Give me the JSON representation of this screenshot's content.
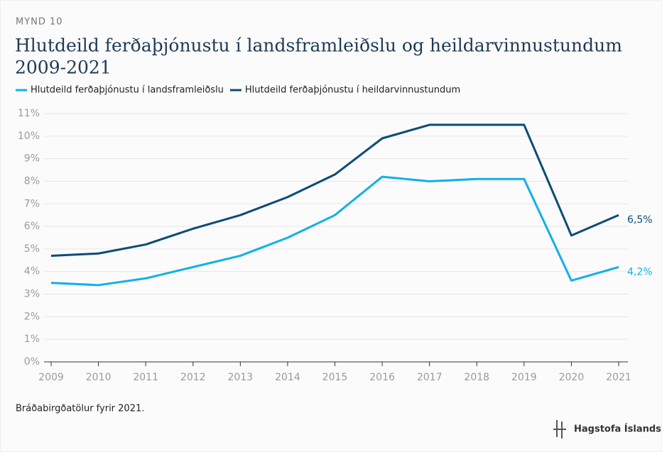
{
  "kicker": "MYND 10",
  "chart_data": {
    "type": "line",
    "title": "Hlutdeild ferðaþjónustu í landsframleiðslu og heildarvinnustundum",
    "subtitle": "2009-2021",
    "x": [
      2009,
      2010,
      2011,
      2012,
      2013,
      2014,
      2015,
      2016,
      2017,
      2018,
      2019,
      2020,
      2021
    ],
    "xlim": [
      2009,
      2021
    ],
    "xticks": [
      2009,
      2010,
      2011,
      2012,
      2013,
      2014,
      2015,
      2016,
      2017,
      2018,
      2019,
      2020,
      2021
    ],
    "ylim": [
      0,
      11
    ],
    "yticks": [
      {
        "value": 0,
        "label": "0%"
      },
      {
        "value": 1,
        "label": "1%"
      },
      {
        "value": 2,
        "label": "2%"
      },
      {
        "value": 3,
        "label": "3%"
      },
      {
        "value": 4,
        "label": "4%"
      },
      {
        "value": 5,
        "label": "5%"
      },
      {
        "value": 6,
        "label": "6%"
      },
      {
        "value": 7,
        "label": "7%"
      },
      {
        "value": 8,
        "label": "8%"
      },
      {
        "value": 9,
        "label": "9%"
      },
      {
        "value": 10,
        "label": "10%"
      },
      {
        "value": 11,
        "label": "11%"
      }
    ],
    "grid": true,
    "legend": "top-left",
    "series": [
      {
        "name": "Hlutdeild ferðaþjónustu í landsframleiðslu",
        "color": "#12b0e8",
        "values": [
          3.5,
          3.4,
          3.7,
          4.2,
          4.7,
          5.5,
          6.5,
          8.2,
          8.0,
          8.1,
          8.1,
          3.6,
          4.2
        ],
        "value_labels": [
          null,
          null,
          null,
          null,
          null,
          null,
          null,
          null,
          null,
          null,
          null,
          null,
          "4,2%"
        ]
      },
      {
        "name": "Hlutdeild ferðaþjónustu í heildarvinnustundum",
        "color": "#0a4c76",
        "values": [
          4.7,
          4.8,
          5.2,
          5.9,
          6.5,
          7.3,
          8.3,
          9.9,
          10.5,
          10.5,
          10.5,
          5.6,
          6.5
        ],
        "value_labels": [
          null,
          null,
          null,
          null,
          null,
          null,
          null,
          null,
          null,
          null,
          null,
          null,
          "6,5%"
        ]
      }
    ],
    "note": "Bráðabirgðatölur fyrir 2021.",
    "source": "Hagstofa Íslands"
  }
}
